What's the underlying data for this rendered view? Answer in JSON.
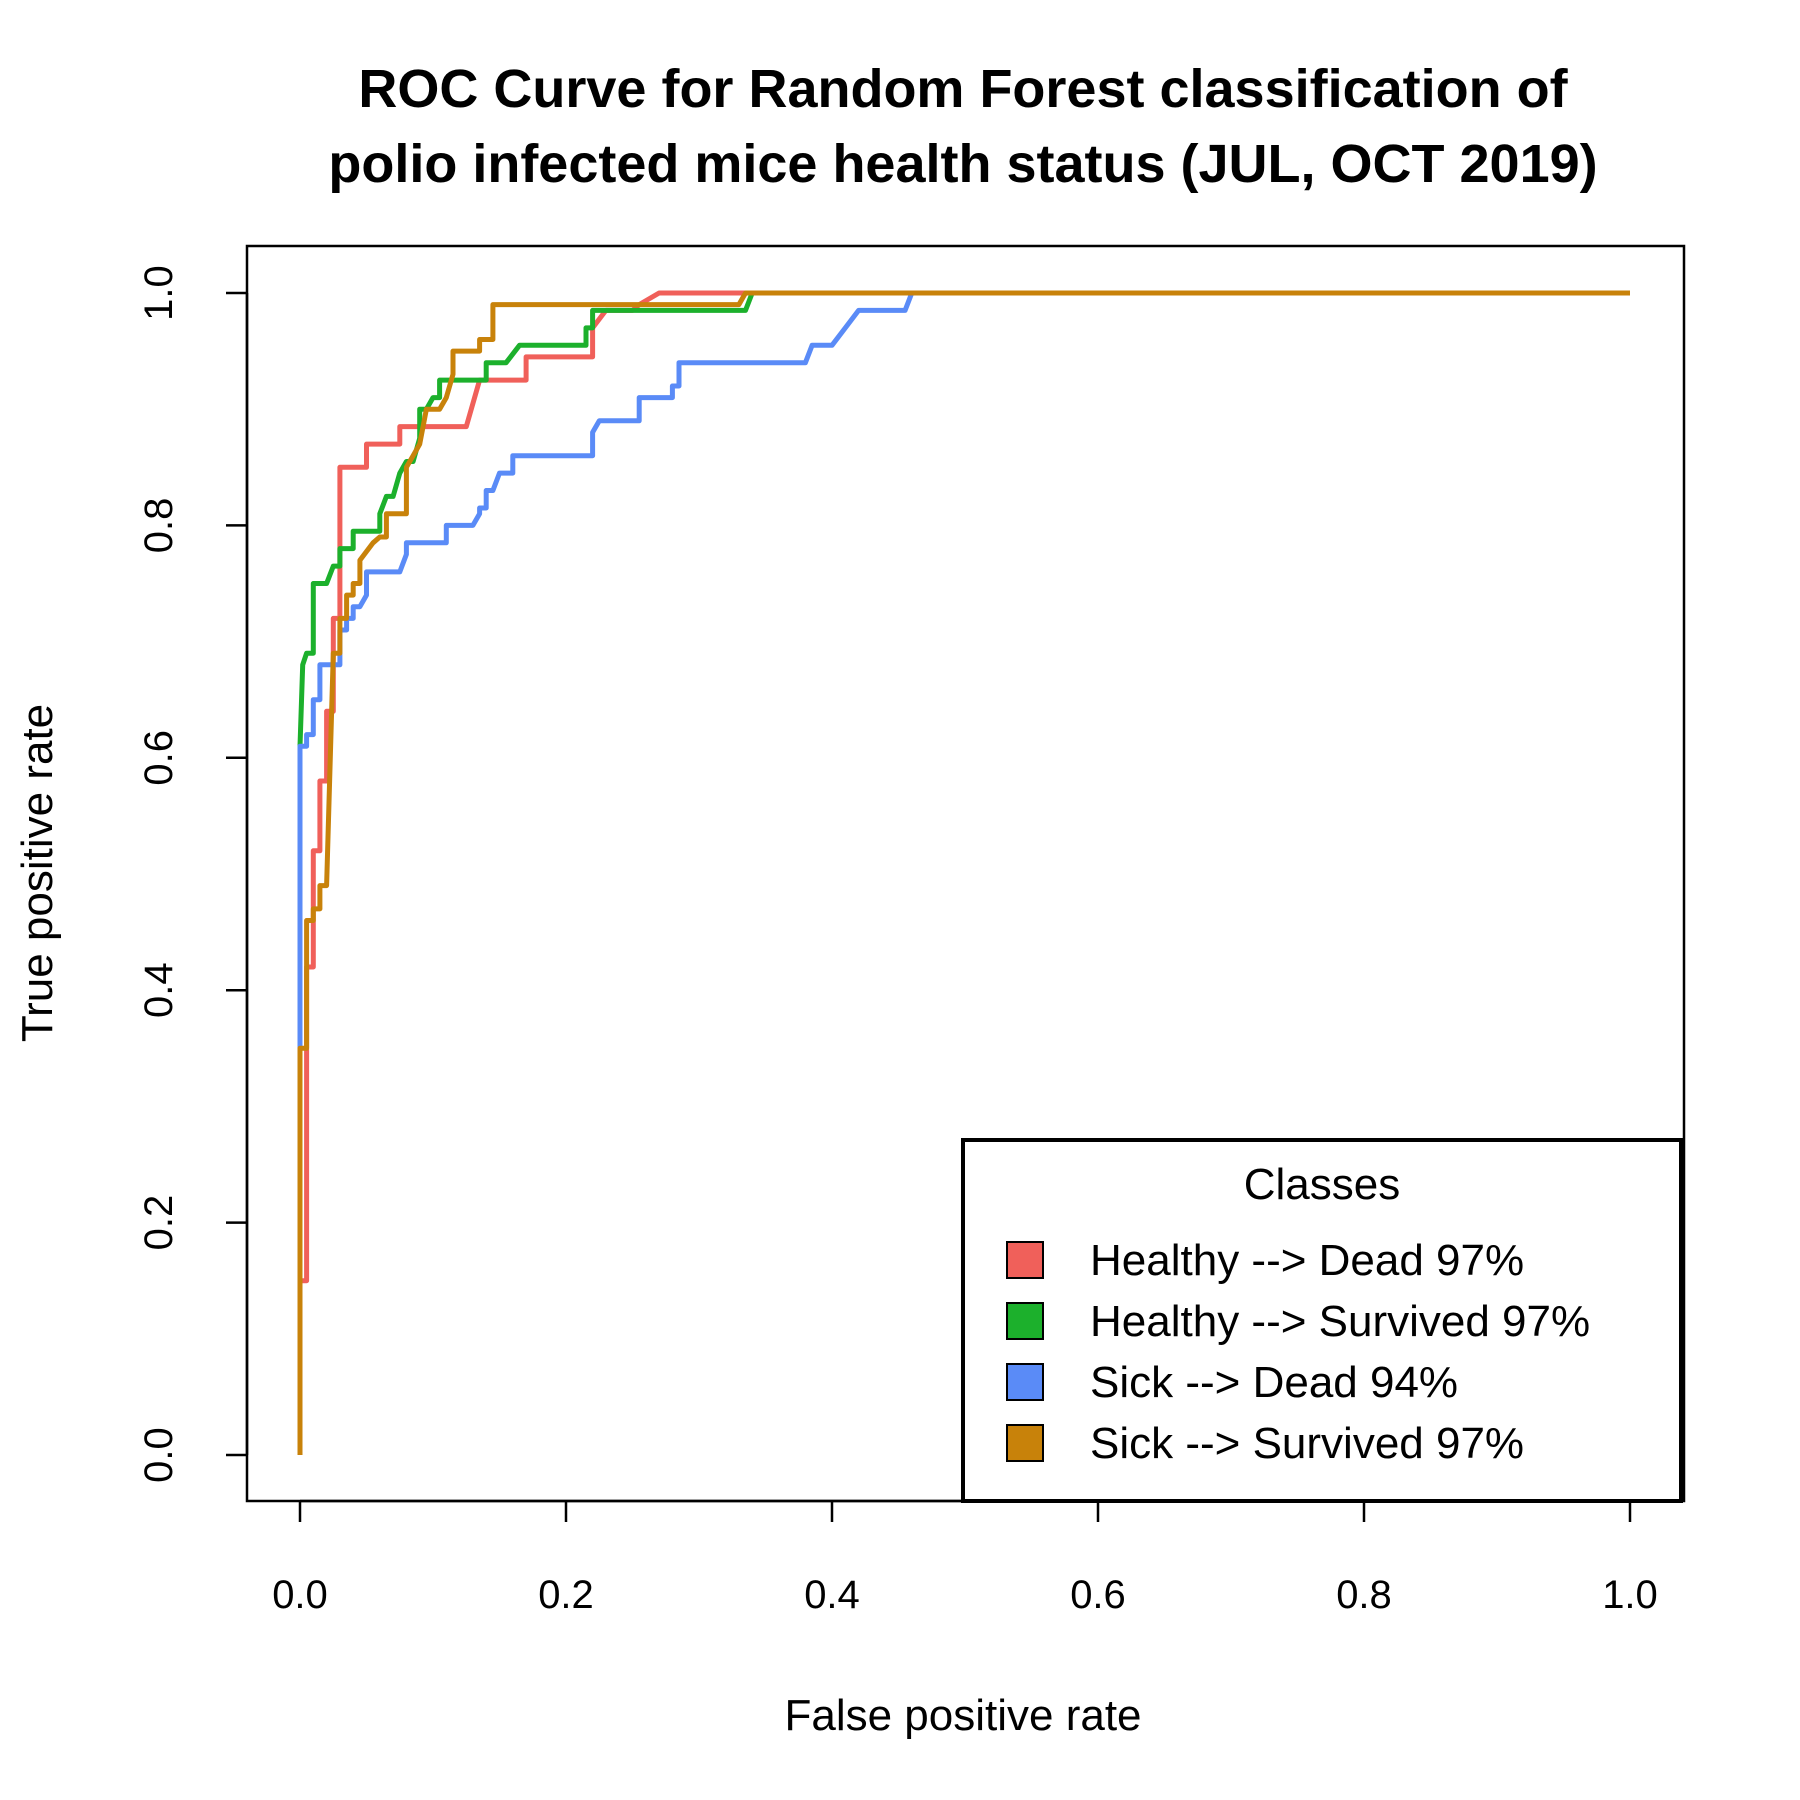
{
  "chart_data": {
    "type": "line",
    "title_lines": [
      "ROC Curve for Random Forest classification of",
      "polio infected mice health status (JUL, OCT 2019)"
    ],
    "xlabel": "False positive rate",
    "ylabel": "True positive rate",
    "xlim": [
      0,
      1
    ],
    "ylim": [
      0,
      1
    ],
    "x_ticks": [
      "0.0",
      "0.2",
      "0.4",
      "0.6",
      "0.8",
      "1.0"
    ],
    "y_ticks": [
      "0.0",
      "0.2",
      "0.4",
      "0.6",
      "0.8",
      "1.0"
    ],
    "grid": false,
    "legend": {
      "title": "Classes",
      "position": "bottom-right"
    },
    "series": [
      {
        "name": "Healthy --> Dead 97%",
        "color": "#f0605a",
        "points": [
          [
            0,
            0
          ],
          [
            0,
            0.15
          ],
          [
            0.005,
            0.15
          ],
          [
            0.005,
            0.42
          ],
          [
            0.01,
            0.42
          ],
          [
            0.01,
            0.52
          ],
          [
            0.015,
            0.52
          ],
          [
            0.015,
            0.58
          ],
          [
            0.02,
            0.58
          ],
          [
            0.02,
            0.64
          ],
          [
            0.025,
            0.64
          ],
          [
            0.025,
            0.72
          ],
          [
            0.03,
            0.72
          ],
          [
            0.03,
            0.85
          ],
          [
            0.05,
            0.85
          ],
          [
            0.05,
            0.87
          ],
          [
            0.075,
            0.87
          ],
          [
            0.075,
            0.885
          ],
          [
            0.125,
            0.885
          ],
          [
            0.135,
            0.925
          ],
          [
            0.17,
            0.925
          ],
          [
            0.17,
            0.945
          ],
          [
            0.22,
            0.945
          ],
          [
            0.22,
            0.97
          ],
          [
            0.23,
            0.985
          ],
          [
            0.25,
            0.985
          ],
          [
            0.255,
            0.99
          ],
          [
            0.27,
            1.0
          ],
          [
            1.0,
            1.0
          ]
        ]
      },
      {
        "name": "Healthy --> Survived 97%",
        "color": "#1cb02c",
        "points": [
          [
            0,
            0
          ],
          [
            0,
            0.61
          ],
          [
            0.002,
            0.68
          ],
          [
            0.005,
            0.69
          ],
          [
            0.01,
            0.69
          ],
          [
            0.01,
            0.75
          ],
          [
            0.02,
            0.75
          ],
          [
            0.025,
            0.765
          ],
          [
            0.03,
            0.765
          ],
          [
            0.03,
            0.78
          ],
          [
            0.04,
            0.78
          ],
          [
            0.04,
            0.795
          ],
          [
            0.06,
            0.795
          ],
          [
            0.06,
            0.81
          ],
          [
            0.065,
            0.825
          ],
          [
            0.07,
            0.825
          ],
          [
            0.075,
            0.845
          ],
          [
            0.08,
            0.855
          ],
          [
            0.085,
            0.855
          ],
          [
            0.09,
            0.875
          ],
          [
            0.09,
            0.9
          ],
          [
            0.095,
            0.9
          ],
          [
            0.1,
            0.91
          ],
          [
            0.105,
            0.91
          ],
          [
            0.105,
            0.925
          ],
          [
            0.14,
            0.925
          ],
          [
            0.14,
            0.94
          ],
          [
            0.155,
            0.94
          ],
          [
            0.165,
            0.955
          ],
          [
            0.215,
            0.955
          ],
          [
            0.215,
            0.97
          ],
          [
            0.22,
            0.97
          ],
          [
            0.22,
            0.985
          ],
          [
            0.335,
            0.985
          ],
          [
            0.34,
            1.0
          ],
          [
            1.0,
            1.0
          ]
        ]
      },
      {
        "name": "Sick --> Dead 94%",
        "color": "#5a8bf7",
        "points": [
          [
            0,
            0
          ],
          [
            0,
            0.35
          ],
          [
            0,
            0.61
          ],
          [
            0.005,
            0.61
          ],
          [
            0.005,
            0.62
          ],
          [
            0.01,
            0.62
          ],
          [
            0.01,
            0.65
          ],
          [
            0.015,
            0.65
          ],
          [
            0.015,
            0.68
          ],
          [
            0.03,
            0.68
          ],
          [
            0.03,
            0.71
          ],
          [
            0.035,
            0.71
          ],
          [
            0.035,
            0.72
          ],
          [
            0.04,
            0.72
          ],
          [
            0.04,
            0.73
          ],
          [
            0.045,
            0.73
          ],
          [
            0.05,
            0.74
          ],
          [
            0.05,
            0.76
          ],
          [
            0.075,
            0.76
          ],
          [
            0.08,
            0.775
          ],
          [
            0.08,
            0.785
          ],
          [
            0.11,
            0.785
          ],
          [
            0.11,
            0.8
          ],
          [
            0.13,
            0.8
          ],
          [
            0.135,
            0.81
          ],
          [
            0.135,
            0.815
          ],
          [
            0.14,
            0.815
          ],
          [
            0.14,
            0.83
          ],
          [
            0.145,
            0.83
          ],
          [
            0.15,
            0.845
          ],
          [
            0.16,
            0.845
          ],
          [
            0.16,
            0.86
          ],
          [
            0.22,
            0.86
          ],
          [
            0.22,
            0.88
          ],
          [
            0.225,
            0.89
          ],
          [
            0.255,
            0.89
          ],
          [
            0.255,
            0.91
          ],
          [
            0.28,
            0.91
          ],
          [
            0.28,
            0.92
          ],
          [
            0.285,
            0.92
          ],
          [
            0.285,
            0.94
          ],
          [
            0.38,
            0.94
          ],
          [
            0.385,
            0.955
          ],
          [
            0.4,
            0.955
          ],
          [
            0.41,
            0.97
          ],
          [
            0.42,
            0.985
          ],
          [
            0.455,
            0.985
          ],
          [
            0.46,
            1.0
          ],
          [
            1.0,
            1.0
          ]
        ]
      },
      {
        "name": "Sick --> Survived 97%",
        "color": "#c8820a",
        "points": [
          [
            0,
            0
          ],
          [
            0,
            0.35
          ],
          [
            0.005,
            0.35
          ],
          [
            0.005,
            0.46
          ],
          [
            0.01,
            0.46
          ],
          [
            0.01,
            0.47
          ],
          [
            0.015,
            0.47
          ],
          [
            0.015,
            0.49
          ],
          [
            0.02,
            0.49
          ],
          [
            0.025,
            0.69
          ],
          [
            0.03,
            0.69
          ],
          [
            0.03,
            0.72
          ],
          [
            0.035,
            0.72
          ],
          [
            0.035,
            0.74
          ],
          [
            0.04,
            0.74
          ],
          [
            0.04,
            0.75
          ],
          [
            0.045,
            0.75
          ],
          [
            0.045,
            0.77
          ],
          [
            0.055,
            0.785
          ],
          [
            0.06,
            0.79
          ],
          [
            0.065,
            0.79
          ],
          [
            0.065,
            0.81
          ],
          [
            0.08,
            0.81
          ],
          [
            0.08,
            0.85
          ],
          [
            0.085,
            0.86
          ],
          [
            0.09,
            0.87
          ],
          [
            0.095,
            0.9
          ],
          [
            0.105,
            0.9
          ],
          [
            0.11,
            0.91
          ],
          [
            0.115,
            0.93
          ],
          [
            0.115,
            0.95
          ],
          [
            0.135,
            0.95
          ],
          [
            0.135,
            0.96
          ],
          [
            0.145,
            0.96
          ],
          [
            0.145,
            0.99
          ],
          [
            0.33,
            0.99
          ],
          [
            0.335,
            1.0
          ],
          [
            1.0,
            1.0
          ]
        ]
      }
    ]
  }
}
